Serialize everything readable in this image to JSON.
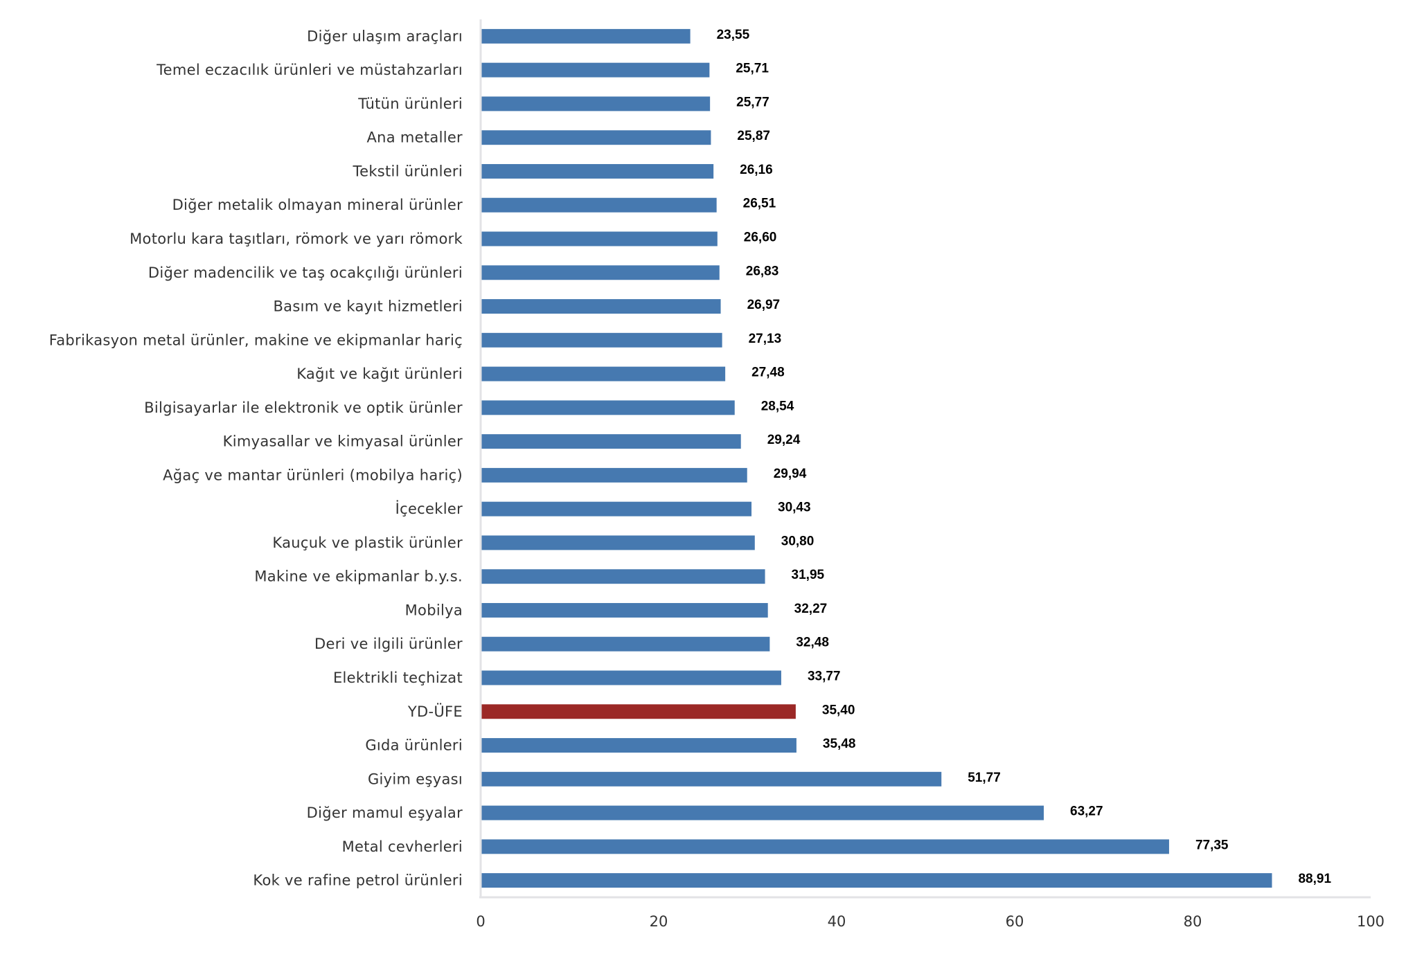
{
  "chart_data": {
    "type": "bar",
    "orientation": "horizontal",
    "title": "",
    "xlabel": "",
    "ylabel": "",
    "xlim": [
      0,
      100
    ],
    "x_ticks": [
      "0",
      "20",
      "40",
      "60",
      "80",
      "100"
    ],
    "x_tick_values": [
      0,
      20,
      40,
      60,
      80,
      100
    ],
    "grid": false,
    "legend": "none",
    "default_color": "#4679B0",
    "highlight_color": "#9B2826",
    "categories": [
      "Diğer ulaşım araçları",
      "Temel eczacılık ürünleri ve müstahzarları",
      "Tütün ürünleri",
      "Ana metaller",
      "Tekstil ürünleri",
      "Diğer metalik olmayan mineral ürünler",
      "Motorlu kara taşıtları, römork ve yarı römork",
      "Diğer madencilik ve taş ocakçılığı ürünleri",
      "Basım ve kayıt hizmetleri",
      "Fabrikasyon metal ürünler, makine ve ekipmanlar hariç",
      "Kağıt ve kağıt ürünleri",
      "Bilgisayarlar ile elektronik ve optik ürünler",
      "Kimyasallar ve kimyasal ürünler",
      "Ağaç ve mantar ürünleri (mobilya hariç)",
      "İçecekler",
      "Kauçuk ve plastik ürünler",
      "Makine ve ekipmanlar b.y.s.",
      "Mobilya",
      "Deri ve ilgili ürünler",
      "Elektrikli teçhizat",
      "YD-ÜFE",
      "Gıda ürünleri",
      "Giyim eşyası",
      "Diğer mamul eşyalar",
      "Metal cevherleri",
      "Kok ve rafine petrol ürünleri"
    ],
    "values": [
      23.55,
      25.71,
      25.77,
      25.87,
      26.16,
      26.51,
      26.6,
      26.83,
      26.97,
      27.13,
      27.48,
      28.54,
      29.24,
      29.94,
      30.43,
      30.8,
      31.95,
      32.27,
      32.48,
      33.77,
      35.4,
      35.48,
      51.77,
      63.27,
      77.35,
      88.91
    ],
    "value_labels": [
      "23,55",
      "25,71",
      "25,77",
      "25,87",
      "26,16",
      "26,51",
      "26,60",
      "26,83",
      "26,97",
      "27,13",
      "27,48",
      "28,54",
      "29,24",
      "29,94",
      "30,43",
      "30,80",
      "31,95",
      "32,27",
      "32,48",
      "33,77",
      "35,40",
      "35,48",
      "51,77",
      "63,27",
      "77,35",
      "88,91"
    ],
    "highlighted": [
      "YD-ÜFE"
    ]
  }
}
